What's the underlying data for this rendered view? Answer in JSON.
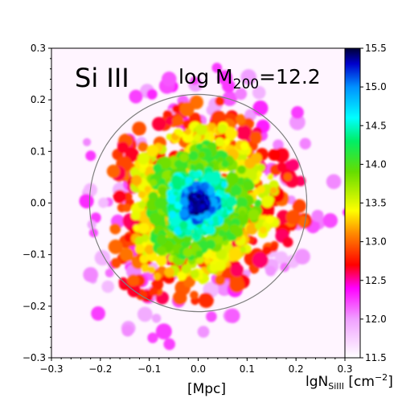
{
  "chart_data": {
    "type": "heatmap",
    "ion": "Si III",
    "mass_label": "log M",
    "mass_subscript": "200",
    "mass_value": "=12.2",
    "xlabel": "[Mpc]",
    "colorbar_label": "lgN",
    "colorbar_label_sub": "SiIII",
    "colorbar_label_unit": " [cm",
    "colorbar_label_exp": "−2",
    "colorbar_label_end": "]",
    "xlim": [
      -0.3,
      0.3
    ],
    "ylim": [
      -0.3,
      0.3
    ],
    "x_ticks": [
      "−0.3",
      "−0.2",
      "−0.1",
      "0.0",
      "0.1",
      "0.2",
      "0.3"
    ],
    "x_tick_values": [
      -0.3,
      -0.2,
      -0.1,
      0.0,
      0.1,
      0.2,
      0.3
    ],
    "y_ticks": [
      "0.3",
      "0.2",
      "0.1",
      "0.0",
      "−0.1",
      "−0.2",
      "−0.3"
    ],
    "y_tick_values": [
      0.3,
      0.2,
      0.1,
      0.0,
      -0.1,
      -0.2,
      -0.3
    ],
    "colorbar_range": [
      11.5,
      15.5
    ],
    "colorbar_ticks": [
      "15.5",
      "15.0",
      "14.5",
      "14.0",
      "13.5",
      "13.0",
      "12.5",
      "12.0",
      "11.5"
    ],
    "colorbar_tick_values": [
      15.5,
      15.0,
      14.5,
      14.0,
      13.5,
      13.0,
      12.5,
      12.0,
      11.5
    ],
    "circle_radius_mpc": 0.222,
    "circle_center": [
      0.0,
      0.0
    ],
    "circle_color": "#808080",
    "background_color": "#fff5ff",
    "colormap_stops": [
      {
        "value": 11.5,
        "color": "#ffffff"
      },
      {
        "value": 12.0,
        "color": "#f0a0ff"
      },
      {
        "value": 12.4,
        "color": "#ff00ff"
      },
      {
        "value": 12.7,
        "color": "#ff0000"
      },
      {
        "value": 13.1,
        "color": "#ff8800"
      },
      {
        "value": 13.4,
        "color": "#ffff00"
      },
      {
        "value": 13.9,
        "color": "#66dd00"
      },
      {
        "value": 14.3,
        "color": "#00ee66"
      },
      {
        "value": 14.6,
        "color": "#00ffff"
      },
      {
        "value": 15.0,
        "color": "#0090ff"
      },
      {
        "value": 15.3,
        "color": "#0000cc"
      },
      {
        "value": 15.5,
        "color": "#000033"
      }
    ]
  }
}
